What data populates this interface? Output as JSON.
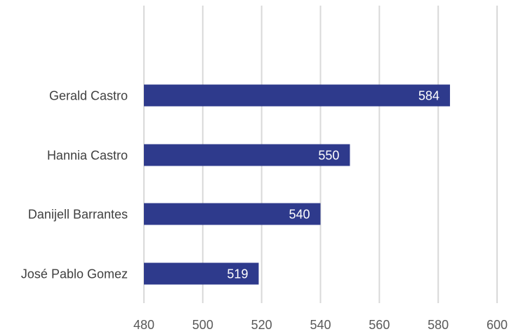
{
  "chart_data": {
    "type": "bar",
    "orientation": "horizontal",
    "title": "",
    "xlabel": "",
    "ylabel": "",
    "categories": [
      "Gerald Castro",
      "Hannia Castro",
      "Danijell Barrantes",
      "José Pablo Gomez"
    ],
    "values": [
      584,
      550,
      540,
      519
    ],
    "xlim": [
      480,
      600
    ],
    "x_ticks": [
      480,
      500,
      520,
      540,
      560,
      580,
      600
    ],
    "grid": "vertical",
    "legend": "none",
    "bar_color": "#2e3a8c",
    "data_label_color": "#ffffff",
    "gridline_color": "#d9d9d9"
  }
}
